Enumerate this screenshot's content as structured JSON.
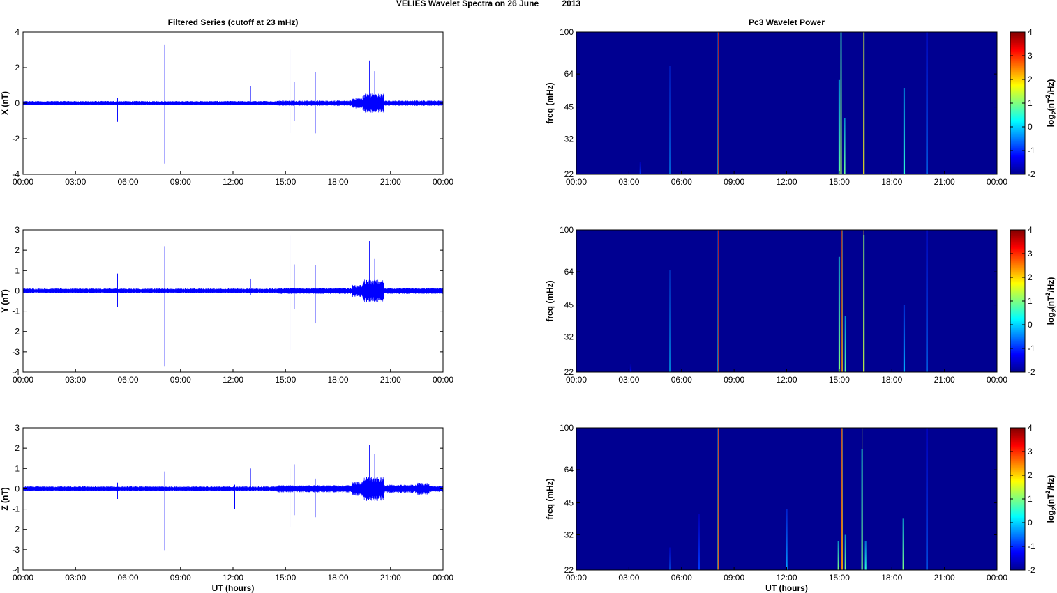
{
  "figure": {
    "title_left": "VELIES Wavelet Spectra on 26 June",
    "title_right": "2013",
    "left_column_title": "Filtered Series (cutoff at 23 mHz)",
    "right_column_title": "Pc3 Wavelet Power",
    "xlabel": "UT (hours)"
  },
  "colors": {
    "series": "#0000ff",
    "spectrogram_background": "#00008f",
    "axes": "#000000"
  },
  "chart_data": [
    {
      "type": "line",
      "panel": "X",
      "title": "Filtered Series (cutoff at 23 mHz)",
      "ylabel": "X (nT)",
      "xlabel": "",
      "x_ticks": [
        "00:00",
        "03:00",
        "06:00",
        "09:00",
        "12:00",
        "15:00",
        "18:00",
        "21:00",
        "00:00"
      ],
      "xlim_hours": [
        0,
        24
      ],
      "y_ticks": [
        4,
        2,
        0,
        -2,
        -4
      ],
      "ylim": [
        -4,
        4
      ],
      "noise_envelope_nT": [
        {
          "from": 0,
          "to": 8,
          "amp": 0.12
        },
        {
          "from": 8,
          "to": 14.5,
          "amp": 0.12
        },
        {
          "from": 14.5,
          "to": 18.8,
          "amp": 0.15
        },
        {
          "from": 18.8,
          "to": 19.4,
          "amp": 0.3
        },
        {
          "from": 19.4,
          "to": 20.6,
          "amp": 0.55
        },
        {
          "from": 20.6,
          "to": 24,
          "amp": 0.15
        }
      ],
      "spikes": [
        {
          "t": 5.4,
          "min": -1.05,
          "max": 0.3
        },
        {
          "t": 8.1,
          "min": -3.4,
          "max": 3.3
        },
        {
          "t": 13.0,
          "min": -0.1,
          "max": 0.95
        },
        {
          "t": 15.25,
          "min": -1.7,
          "max": 3.0
        },
        {
          "t": 15.5,
          "min": -1.0,
          "max": 1.2
        },
        {
          "t": 16.7,
          "min": -1.7,
          "max": 1.75
        },
        {
          "t": 19.8,
          "min": -0.4,
          "max": 2.4
        },
        {
          "t": 20.1,
          "min": -0.5,
          "max": 1.8
        }
      ]
    },
    {
      "type": "line",
      "panel": "Y",
      "title": "",
      "ylabel": "Y (nT)",
      "xlabel": "",
      "x_ticks": [
        "00:00",
        "03:00",
        "06:00",
        "09:00",
        "12:00",
        "15:00",
        "18:00",
        "21:00",
        "00:00"
      ],
      "xlim_hours": [
        0,
        24
      ],
      "y_ticks": [
        3,
        2,
        1,
        0,
        -1,
        -2,
        -3,
        -4
      ],
      "ylim": [
        -4,
        3
      ],
      "noise_envelope_nT": [
        {
          "from": 0,
          "to": 8,
          "amp": 0.12
        },
        {
          "from": 8,
          "to": 14.5,
          "amp": 0.12
        },
        {
          "from": 14.5,
          "to": 18.8,
          "amp": 0.15
        },
        {
          "from": 18.8,
          "to": 19.4,
          "amp": 0.3
        },
        {
          "from": 19.4,
          "to": 20.6,
          "amp": 0.55
        },
        {
          "from": 20.6,
          "to": 24,
          "amp": 0.15
        }
      ],
      "spikes": [
        {
          "t": 5.4,
          "min": -0.8,
          "max": 0.85
        },
        {
          "t": 8.1,
          "min": -3.7,
          "max": 2.2
        },
        {
          "t": 13.0,
          "min": -0.2,
          "max": 0.6
        },
        {
          "t": 15.25,
          "min": -2.9,
          "max": 2.75
        },
        {
          "t": 15.5,
          "min": -0.9,
          "max": 1.3
        },
        {
          "t": 16.7,
          "min": -1.6,
          "max": 1.25
        },
        {
          "t": 19.8,
          "min": -0.4,
          "max": 2.45
        },
        {
          "t": 20.1,
          "min": -0.5,
          "max": 1.6
        }
      ]
    },
    {
      "type": "line",
      "panel": "Z",
      "title": "",
      "ylabel": "Z (nT)",
      "xlabel": "UT (hours)",
      "x_ticks": [
        "00:00",
        "03:00",
        "06:00",
        "09:00",
        "12:00",
        "15:00",
        "18:00",
        "21:00",
        "00:00"
      ],
      "xlim_hours": [
        0,
        24
      ],
      "y_ticks": [
        3,
        2,
        1,
        0,
        -1,
        -2,
        -3,
        -4
      ],
      "ylim": [
        -4,
        3
      ],
      "noise_envelope_nT": [
        {
          "from": 0,
          "to": 8,
          "amp": 0.12
        },
        {
          "from": 8,
          "to": 14.5,
          "amp": 0.12
        },
        {
          "from": 14.5,
          "to": 18.8,
          "amp": 0.18
        },
        {
          "from": 18.8,
          "to": 19.4,
          "amp": 0.35
        },
        {
          "from": 19.4,
          "to": 20.6,
          "amp": 0.6
        },
        {
          "from": 20.6,
          "to": 22.5,
          "amp": 0.2
        },
        {
          "from": 22.5,
          "to": 23.2,
          "amp": 0.3
        },
        {
          "from": 23.2,
          "to": 24,
          "amp": 0.15
        }
      ],
      "spikes": [
        {
          "t": 5.4,
          "min": -0.5,
          "max": 0.3
        },
        {
          "t": 8.1,
          "min": -3.05,
          "max": 0.85
        },
        {
          "t": 12.1,
          "min": -1.0,
          "max": 0.2
        },
        {
          "t": 13.0,
          "min": -0.1,
          "max": 1.0
        },
        {
          "t": 15.25,
          "min": -1.9,
          "max": 1.0
        },
        {
          "t": 15.5,
          "min": -1.3,
          "max": 1.2
        },
        {
          "t": 16.7,
          "min": -1.4,
          "max": 0.5
        },
        {
          "t": 19.8,
          "min": -0.4,
          "max": 2.15
        },
        {
          "t": 20.1,
          "min": -0.5,
          "max": 1.7
        }
      ]
    },
    {
      "type": "heatmap",
      "panel": "X",
      "title": "Pc3 Wavelet Power",
      "ylabel": "freq (mHz)",
      "xlabel": "",
      "x_ticks": [
        "00:00",
        "03:00",
        "06:00",
        "09:00",
        "12:00",
        "15:00",
        "18:00",
        "21:00",
        "00:00"
      ],
      "xlim_hours": [
        0,
        24
      ],
      "y_ticks": [
        100,
        64,
        45,
        32,
        22
      ],
      "ylim_mHz": [
        22,
        100
      ],
      "y_scale": "log",
      "colorbar_label": "log2(nT^2/Hz)",
      "colorbar_ticks": [
        4,
        3,
        2,
        1,
        0,
        -1,
        -2
      ],
      "clim": [
        -2,
        4
      ],
      "background_value": -1.9,
      "bursts": [
        {
          "t": 3.65,
          "value": -0.9,
          "fmax": 25
        },
        {
          "t": 5.35,
          "value": -0.3,
          "fmax": 70
        },
        {
          "t": 8.1,
          "value": 0.5,
          "fmax": 100,
          "core_value": 3.5
        },
        {
          "t": 15.0,
          "value": 0.8,
          "fmax": 60
        },
        {
          "t": 15.1,
          "value": 1.2,
          "fmax": 100,
          "core_value": 3.5
        },
        {
          "t": 15.3,
          "value": 0.9,
          "fmax": 40
        },
        {
          "t": 16.4,
          "value": 1.5,
          "fmax": 100,
          "core_value": 2.5
        },
        {
          "t": 18.7,
          "value": 0.5,
          "fmax": 55
        },
        {
          "t": 20.0,
          "value": -0.5,
          "fmax": 100
        }
      ]
    },
    {
      "type": "heatmap",
      "panel": "Y",
      "title": "",
      "ylabel": "freq (mHz)",
      "xlabel": "",
      "x_ticks": [
        "00:00",
        "03:00",
        "06:00",
        "09:00",
        "12:00",
        "15:00",
        "18:00",
        "21:00",
        "00:00"
      ],
      "xlim_hours": [
        0,
        24
      ],
      "y_ticks": [
        100,
        64,
        45,
        32,
        22
      ],
      "ylim_mHz": [
        22,
        100
      ],
      "y_scale": "log",
      "colorbar_label": "log2(nT^2/Hz)",
      "colorbar_ticks": [
        4,
        3,
        2,
        1,
        0,
        -1,
        -2
      ],
      "clim": [
        -2,
        4
      ],
      "background_value": -1.9,
      "bursts": [
        {
          "t": 3.1,
          "value": -1.2,
          "fmax": 24
        },
        {
          "t": 5.35,
          "value": 0.0,
          "fmax": 65
        },
        {
          "t": 8.1,
          "value": 0.3,
          "fmax": 100,
          "core_value": 3.5
        },
        {
          "t": 15.0,
          "value": 1.0,
          "fmax": 75
        },
        {
          "t": 15.15,
          "value": 1.5,
          "fmax": 100,
          "core_value": 3.5
        },
        {
          "t": 15.35,
          "value": 0.8,
          "fmax": 40
        },
        {
          "t": 16.4,
          "value": 1.2,
          "fmax": 95,
          "core_value": 2.0
        },
        {
          "t": 18.7,
          "value": -0.2,
          "fmax": 45
        },
        {
          "t": 20.0,
          "value": -0.5,
          "fmax": 100
        }
      ]
    },
    {
      "type": "heatmap",
      "panel": "Z",
      "title": "",
      "ylabel": "freq (mHz)",
      "xlabel": "UT (hours)",
      "x_ticks": [
        "00:00",
        "03:00",
        "06:00",
        "09:00",
        "12:00",
        "15:00",
        "18:00",
        "21:00",
        "00:00"
      ],
      "xlim_hours": [
        0,
        24
      ],
      "y_ticks": [
        100,
        64,
        45,
        32,
        22
      ],
      "ylim_mHz": [
        22,
        100
      ],
      "y_scale": "log",
      "colorbar_label": "log2(nT^2/Hz)",
      "colorbar_ticks": [
        4,
        3,
        2,
        1,
        0,
        -1,
        -2
      ],
      "clim": [
        -2,
        4
      ],
      "background_value": -1.9,
      "bursts": [
        {
          "t": 5.35,
          "value": -0.6,
          "fmax": 28
        },
        {
          "t": 7.0,
          "value": -0.9,
          "fmax": 40
        },
        {
          "t": 8.1,
          "value": 1.0,
          "fmax": 100,
          "core_value": 3.0
        },
        {
          "t": 12.0,
          "value": -0.3,
          "fmax": 42
        },
        {
          "t": 14.95,
          "value": 1.0,
          "fmax": 30
        },
        {
          "t": 15.15,
          "value": 1.8,
          "fmax": 100,
          "core_value": 3.0
        },
        {
          "t": 15.35,
          "value": 1.0,
          "fmax": 32
        },
        {
          "t": 16.3,
          "value": 0.9,
          "fmax": 80,
          "core_value": 1.5
        },
        {
          "t": 16.5,
          "value": 0.5,
          "fmax": 30
        },
        {
          "t": 18.65,
          "value": 1.0,
          "fmax": 38
        },
        {
          "t": 20.0,
          "value": -0.6,
          "fmax": 100
        }
      ]
    }
  ]
}
